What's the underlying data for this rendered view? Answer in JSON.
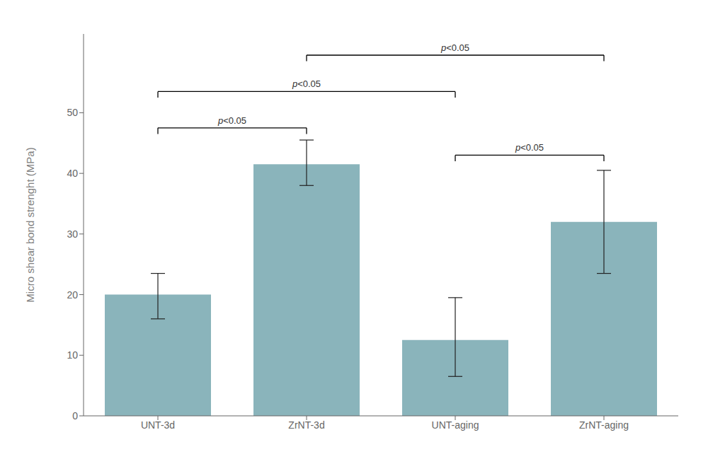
{
  "chart_data": {
    "type": "bar",
    "categories": [
      "UNT-3d",
      "ZrNT-3d",
      "UNT-aging",
      "ZrNT-aging"
    ],
    "values": [
      20.0,
      41.5,
      12.5,
      32.0
    ],
    "errors_up": [
      3.5,
      4.0,
      7.0,
      8.5
    ],
    "errors_down": [
      4.0,
      3.5,
      6.0,
      8.5
    ],
    "color": "#8AB4BB",
    "ylabel": "Micro shear bond strenght (MPa)",
    "ylim": [
      0,
      63
    ],
    "yticks": [
      0,
      10,
      20,
      30,
      40,
      50
    ],
    "grid": false,
    "annotations": [
      {
        "from": "UNT-3d",
        "to": "ZrNT-3d",
        "y": 47.5,
        "label": "p<0.05"
      },
      {
        "from": "UNT-3d",
        "to": "UNT-aging",
        "y": 53.5,
        "label": "p<0.05"
      },
      {
        "from": "ZrNT-3d",
        "to": "ZrNT-aging",
        "y": 59.5,
        "label": "p<0.05"
      },
      {
        "from": "UNT-aging",
        "to": "ZrNT-aging",
        "y": 43.0,
        "label": "p<0.05"
      }
    ]
  }
}
